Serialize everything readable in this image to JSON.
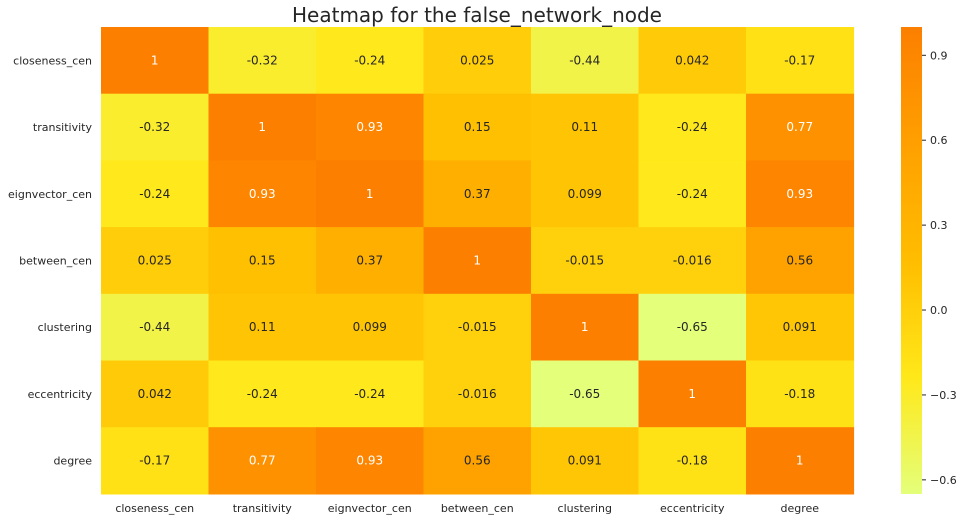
{
  "chart_data": {
    "type": "heatmap",
    "title": "Heatmap for the false_network_node",
    "rows": [
      "closeness_cen",
      "transitivity",
      "eignvector_cen",
      "between_cen",
      "clustering",
      "eccentricity",
      "degree"
    ],
    "columns": [
      "closeness_cen",
      "transitivity",
      "eignvector_cen",
      "between_cen",
      "clustering",
      "eccentricity",
      "degree"
    ],
    "values": [
      [
        1,
        -0.32,
        -0.24,
        0.025,
        -0.44,
        0.042,
        -0.17
      ],
      [
        -0.32,
        1,
        0.93,
        0.15,
        0.11,
        -0.24,
        0.77
      ],
      [
        -0.24,
        0.93,
        1,
        0.37,
        0.099,
        -0.24,
        0.93
      ],
      [
        0.025,
        0.15,
        0.37,
        1,
        -0.015,
        -0.016,
        0.56
      ],
      [
        -0.44,
        0.11,
        0.099,
        -0.015,
        1,
        -0.65,
        0.091
      ],
      [
        0.042,
        -0.24,
        -0.24,
        -0.016,
        -0.65,
        1,
        -0.18
      ],
      [
        -0.17,
        0.77,
        0.93,
        0.56,
        0.091,
        -0.18,
        1
      ]
    ],
    "cell_labels": [
      [
        "1",
        "-0.32",
        "-0.24",
        "0.025",
        "-0.44",
        "0.042",
        "-0.17"
      ],
      [
        "-0.32",
        "1",
        "0.93",
        "0.15",
        "0.11",
        "-0.24",
        "0.77"
      ],
      [
        "-0.24",
        "0.93",
        "1",
        "0.37",
        "0.099",
        "-0.24",
        "0.93"
      ],
      [
        "0.025",
        "0.15",
        "0.37",
        "1",
        "-0.015",
        "-0.016",
        "0.56"
      ],
      [
        "-0.44",
        "0.11",
        "0.099",
        "-0.015",
        "1",
        "-0.65",
        "0.091"
      ],
      [
        "0.042",
        "-0.24",
        "-0.24",
        "-0.016",
        "-0.65",
        "1",
        "-0.18"
      ],
      [
        "-0.17",
        "0.77",
        "0.93",
        "0.56",
        "0.091",
        "-0.18",
        "1"
      ]
    ],
    "colormap": "Wistia",
    "colormap_stops": [
      "#e4ff7a",
      "#ffe81a",
      "#ffbd00",
      "#ffa000",
      "#fc7f00"
    ],
    "colorbar": {
      "vmin": -0.65,
      "vmax": 1,
      "ticks": [
        0.9,
        0.6,
        0.3,
        0.0,
        -0.3,
        -0.6
      ],
      "tick_labels": [
        "0.9",
        "0.6",
        "0.3",
        "0.0",
        "−0.3",
        "−0.6"
      ]
    },
    "text_color_light": "#ffffff",
    "text_color_dark": "#262626"
  }
}
